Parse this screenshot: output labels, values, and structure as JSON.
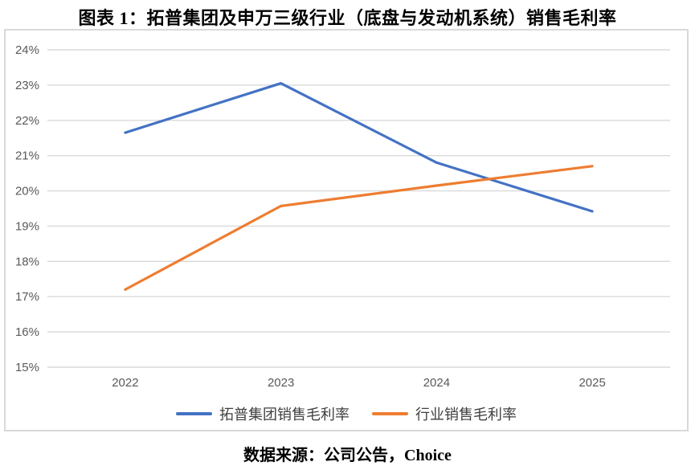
{
  "page": {
    "title": "图表 1：拓普集团及申万三级行业（底盘与发动机系统）销售毛利率",
    "source_note": "数据来源：公司公告，Choice"
  },
  "chart_data": {
    "type": "line",
    "title": "图表 1：拓普集团及申万三级行业（底盘与发动机系统）销售毛利率",
    "categories": [
      "2022",
      "2023",
      "2024",
      "2025"
    ],
    "series": [
      {
        "name": "拓普集团销售毛利率",
        "color": "#4472C4",
        "values": [
          21.65,
          23.05,
          20.8,
          19.42
        ]
      },
      {
        "name": "行业销售毛利率",
        "color": "#ED7D31",
        "values": [
          17.2,
          19.57,
          20.15,
          20.7
        ]
      }
    ],
    "ylim": [
      15,
      24
    ],
    "y_tick_step": 1,
    "y_tick_suffix": "%",
    "y_tick_labels": [
      "15%",
      "16%",
      "17%",
      "18%",
      "19%",
      "20%",
      "21%",
      "22%",
      "23%",
      "24%"
    ],
    "grid": "horizontal",
    "legend_position": "bottom",
    "gridline_color": "#D9D9D9",
    "axis_label_color": "#595959"
  }
}
